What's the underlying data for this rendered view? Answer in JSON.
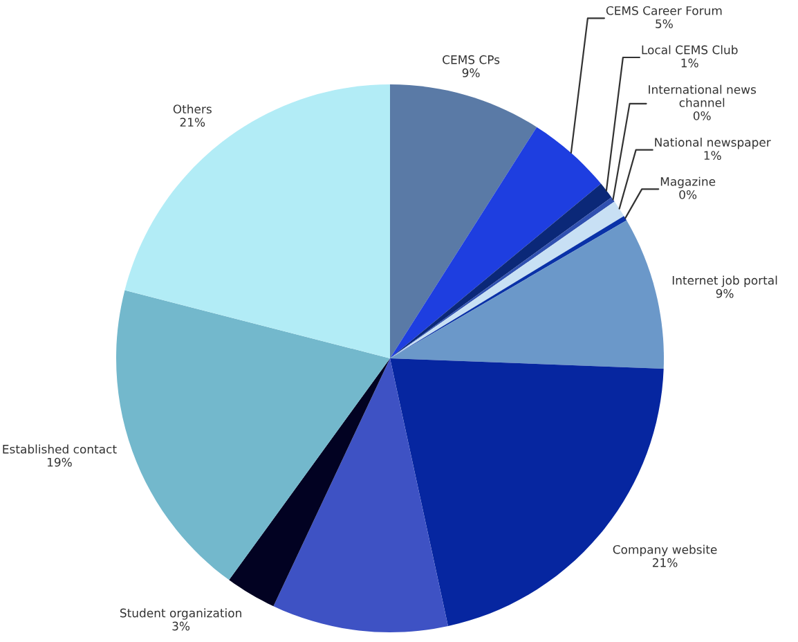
{
  "chart_data": {
    "type": "pie",
    "categories": [
      "CEMS CPs",
      "CEMS Career Forum",
      "Local CEMS Club",
      "International news\nchannel",
      "National newspaper",
      "Magazine",
      "Internet job portal",
      "Company website",
      null,
      "Student organization",
      "Established contact",
      "Others"
    ],
    "values": [
      9,
      5,
      1,
      0.3,
      1,
      0.3,
      9,
      21,
      10.4,
      3,
      19,
      21
    ],
    "value_labels": [
      "9%",
      "5%",
      "1%",
      "0%",
      "1%",
      "0%",
      "9%",
      "21%",
      null,
      "3%",
      "19%",
      "21%"
    ],
    "colors": [
      "#5a7aa6",
      "#1e3ee0",
      "#0b2878",
      "#3050b0",
      "#c8e0f4",
      "#0a32a8",
      "#6b98c9",
      "#0626a0",
      "#3e52c4",
      "#020222",
      "#73b8cc",
      "#b2ecf6"
    ]
  }
}
